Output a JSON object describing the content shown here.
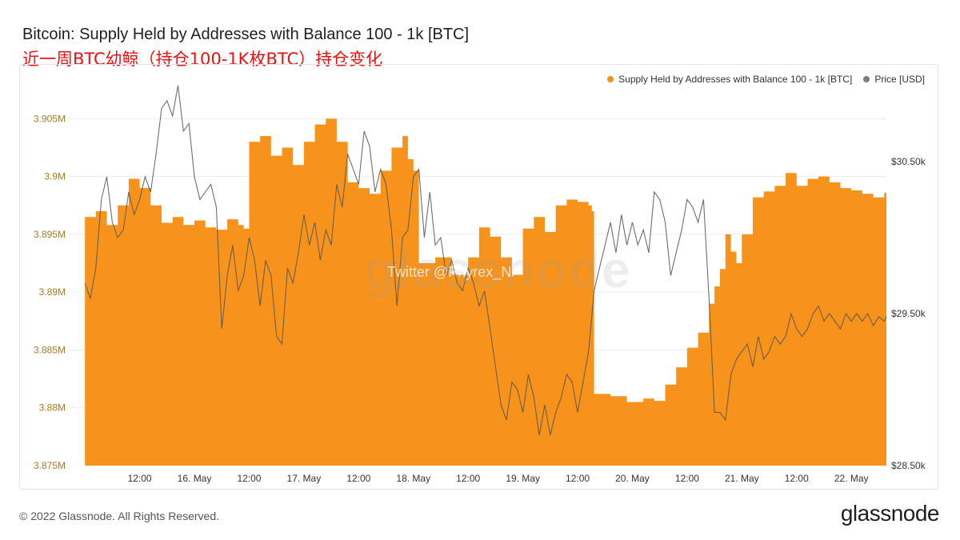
{
  "header": {
    "title": "Bitcoin: Supply Held by Addresses with Balance 100 - 1k [BTC]",
    "subtitle": "近一周BTC幼鲸（持仓100-1K枚BTC）持仓变化"
  },
  "legend": {
    "supply_label": "Supply Held by Addresses with Balance 100 - 1k [BTC]",
    "price_label": "Price [USD]"
  },
  "watermark": {
    "text": "Twitter @Phyrex_Ni",
    "brand": "glassnode"
  },
  "footer": {
    "copyright": "© 2022 Glassnode. All Rights Reserved.",
    "logo": "glassnode"
  },
  "chart_data": {
    "type": "area",
    "colors": {
      "supply": "#f7931a",
      "price": "#7d7d7d",
      "left_axis": "#b07a1c",
      "right_axis": "#333333"
    },
    "x_ticks": [
      {
        "t": 0.5,
        "label": "12:00"
      },
      {
        "t": 1.0,
        "label": "16. May"
      },
      {
        "t": 1.5,
        "label": "12:00"
      },
      {
        "t": 2.0,
        "label": "17. May"
      },
      {
        "t": 2.5,
        "label": "12:00"
      },
      {
        "t": 3.0,
        "label": "18. May"
      },
      {
        "t": 3.5,
        "label": "12:00"
      },
      {
        "t": 4.0,
        "label": "19. May"
      },
      {
        "t": 4.5,
        "label": "12:00"
      },
      {
        "t": 5.0,
        "label": "20. May"
      },
      {
        "t": 5.5,
        "label": "12:00"
      },
      {
        "t": 6.0,
        "label": "21. May"
      },
      {
        "t": 6.5,
        "label": "12:00"
      },
      {
        "t": 7.0,
        "label": "22. May"
      }
    ],
    "y_left": {
      "min": 3875000,
      "max": 3908000,
      "ticks": [
        {
          "v": 3875000,
          "label": "3.875M"
        },
        {
          "v": 3880000,
          "label": "3.88M"
        },
        {
          "v": 3885000,
          "label": "3.885M"
        },
        {
          "v": 3890000,
          "label": "3.89M"
        },
        {
          "v": 3895000,
          "label": "3.895M"
        },
        {
          "v": 3900000,
          "label": "3.9M"
        },
        {
          "v": 3905000,
          "label": "3.905M"
        }
      ]
    },
    "y_right": {
      "min": 28500,
      "max": 31010,
      "ticks": [
        {
          "v": 28500,
          "label": "$28.50k"
        },
        {
          "v": 29500,
          "label": "$29.50k"
        },
        {
          "v": 30500,
          "label": "$30.50k"
        }
      ]
    },
    "supply_series": {
      "name": "Supply Held by Addresses with Balance 100 - 1k [BTC]",
      "points": [
        [
          0.0,
          3896500
        ],
        [
          0.1,
          3897000
        ],
        [
          0.2,
          3895800
        ],
        [
          0.3,
          3897500
        ],
        [
          0.4,
          3899800
        ],
        [
          0.5,
          3899000
        ],
        [
          0.6,
          3897500
        ],
        [
          0.7,
          3896000
        ],
        [
          0.8,
          3896500
        ],
        [
          0.9,
          3895800
        ],
        [
          1.0,
          3896200
        ],
        [
          1.1,
          3895600
        ],
        [
          1.2,
          3895400
        ],
        [
          1.3,
          3896300
        ],
        [
          1.4,
          3895800
        ],
        [
          1.45,
          3895500
        ],
        [
          1.5,
          3903000
        ],
        [
          1.6,
          3903500
        ],
        [
          1.7,
          3901800
        ],
        [
          1.8,
          3902500
        ],
        [
          1.9,
          3901000
        ],
        [
          2.0,
          3903000
        ],
        [
          2.1,
          3904500
        ],
        [
          2.2,
          3905000
        ],
        [
          2.3,
          3903000
        ],
        [
          2.4,
          3899500
        ],
        [
          2.5,
          3899000
        ],
        [
          2.6,
          3898500
        ],
        [
          2.7,
          3900500
        ],
        [
          2.8,
          3902500
        ],
        [
          2.9,
          3903500
        ],
        [
          2.95,
          3901500
        ],
        [
          3.0,
          3900500
        ],
        [
          3.05,
          3892500
        ],
        [
          3.2,
          3893000
        ],
        [
          3.35,
          3891500
        ],
        [
          3.5,
          3893000
        ],
        [
          3.6,
          3895600
        ],
        [
          3.7,
          3894800
        ],
        [
          3.8,
          3893000
        ],
        [
          3.9,
          3891500
        ],
        [
          4.0,
          3895500
        ],
        [
          4.1,
          3896500
        ],
        [
          4.2,
          3895200
        ],
        [
          4.3,
          3897500
        ],
        [
          4.4,
          3898000
        ],
        [
          4.5,
          3897800
        ],
        [
          4.6,
          3897500
        ],
        [
          4.63,
          3897000
        ],
        [
          4.65,
          3881200
        ],
        [
          4.8,
          3881000
        ],
        [
          4.95,
          3880500
        ],
        [
          5.1,
          3880800
        ],
        [
          5.2,
          3880600
        ],
        [
          5.3,
          3882000
        ],
        [
          5.4,
          3883500
        ],
        [
          5.5,
          3885200
        ],
        [
          5.6,
          3886500
        ],
        [
          5.7,
          3889000
        ],
        [
          5.75,
          3890500
        ],
        [
          5.8,
          3892000
        ],
        [
          5.85,
          3895000
        ],
        [
          5.9,
          3893500
        ],
        [
          5.95,
          3892500
        ],
        [
          6.0,
          3895000
        ],
        [
          6.1,
          3898200
        ],
        [
          6.2,
          3898700
        ],
        [
          6.3,
          3899200
        ],
        [
          6.4,
          3900300
        ],
        [
          6.5,
          3899200
        ],
        [
          6.6,
          3899800
        ],
        [
          6.7,
          3900000
        ],
        [
          6.8,
          3899500
        ],
        [
          6.9,
          3899000
        ],
        [
          7.0,
          3898800
        ],
        [
          7.1,
          3898500
        ],
        [
          7.2,
          3898200
        ],
        [
          7.3,
          3898600
        ],
        [
          7.32,
          3898800
        ]
      ]
    },
    "price_series": {
      "name": "Price [USD]",
      "points": [
        [
          0.0,
          29700
        ],
        [
          0.05,
          29600
        ],
        [
          0.1,
          29800
        ],
        [
          0.15,
          30250
        ],
        [
          0.2,
          30400
        ],
        [
          0.25,
          30100
        ],
        [
          0.3,
          30000
        ],
        [
          0.35,
          30050
        ],
        [
          0.4,
          30300
        ],
        [
          0.45,
          30150
        ],
        [
          0.5,
          30250
        ],
        [
          0.55,
          30400
        ],
        [
          0.6,
          30300
        ],
        [
          0.65,
          30550
        ],
        [
          0.7,
          30850
        ],
        [
          0.75,
          30900
        ],
        [
          0.8,
          30800
        ],
        [
          0.85,
          31000
        ],
        [
          0.9,
          30700
        ],
        [
          0.95,
          30750
        ],
        [
          1.0,
          30400
        ],
        [
          1.05,
          30250
        ],
        [
          1.1,
          30300
        ],
        [
          1.15,
          30350
        ],
        [
          1.2,
          30200
        ],
        [
          1.25,
          29400
        ],
        [
          1.3,
          29750
        ],
        [
          1.35,
          29950
        ],
        [
          1.4,
          29650
        ],
        [
          1.45,
          29750
        ],
        [
          1.5,
          30000
        ],
        [
          1.55,
          29850
        ],
        [
          1.6,
          29550
        ],
        [
          1.65,
          29850
        ],
        [
          1.7,
          29750
        ],
        [
          1.75,
          29350
        ],
        [
          1.8,
          29300
        ],
        [
          1.85,
          29800
        ],
        [
          1.9,
          29700
        ],
        [
          1.95,
          29900
        ],
        [
          2.0,
          30150
        ],
        [
          2.05,
          29950
        ],
        [
          2.1,
          30100
        ],
        [
          2.15,
          29850
        ],
        [
          2.2,
          30050
        ],
        [
          2.25,
          29950
        ],
        [
          2.3,
          30350
        ],
        [
          2.35,
          30200
        ],
        [
          2.4,
          30550
        ],
        [
          2.45,
          30450
        ],
        [
          2.5,
          30350
        ],
        [
          2.55,
          30700
        ],
        [
          2.6,
          30600
        ],
        [
          2.65,
          30300
        ],
        [
          2.7,
          30450
        ],
        [
          2.75,
          30350
        ],
        [
          2.8,
          30050
        ],
        [
          2.85,
          29550
        ],
        [
          2.9,
          30000
        ],
        [
          2.95,
          30050
        ],
        [
          3.0,
          30400
        ],
        [
          3.05,
          30450
        ],
        [
          3.1,
          30000
        ],
        [
          3.15,
          30300
        ],
        [
          3.2,
          29950
        ],
        [
          3.25,
          30000
        ],
        [
          3.3,
          29750
        ],
        [
          3.35,
          29850
        ],
        [
          3.4,
          29700
        ],
        [
          3.45,
          29650
        ],
        [
          3.5,
          29800
        ],
        [
          3.55,
          29700
        ],
        [
          3.6,
          29550
        ],
        [
          3.65,
          29650
        ],
        [
          3.7,
          29400
        ],
        [
          3.75,
          29150
        ],
        [
          3.8,
          28900
        ],
        [
          3.85,
          28800
        ],
        [
          3.9,
          29050
        ],
        [
          3.95,
          29000
        ],
        [
          4.0,
          28850
        ],
        [
          4.05,
          29100
        ],
        [
          4.1,
          28950
        ],
        [
          4.15,
          28700
        ],
        [
          4.2,
          28900
        ],
        [
          4.25,
          28700
        ],
        [
          4.3,
          28850
        ],
        [
          4.35,
          28950
        ],
        [
          4.4,
          29100
        ],
        [
          4.45,
          29050
        ],
        [
          4.5,
          28850
        ],
        [
          4.55,
          29050
        ],
        [
          4.6,
          29250
        ],
        [
          4.65,
          29650
        ],
        [
          4.7,
          29800
        ],
        [
          4.75,
          29950
        ],
        [
          4.8,
          30100
        ],
        [
          4.85,
          29900
        ],
        [
          4.9,
          30150
        ],
        [
          4.95,
          29950
        ],
        [
          5.0,
          30100
        ],
        [
          5.05,
          29950
        ],
        [
          5.1,
          30050
        ],
        [
          5.15,
          29900
        ],
        [
          5.2,
          30300
        ],
        [
          5.25,
          30250
        ],
        [
          5.3,
          30100
        ],
        [
          5.35,
          29750
        ],
        [
          5.4,
          29900
        ],
        [
          5.45,
          30050
        ],
        [
          5.5,
          30250
        ],
        [
          5.55,
          30200
        ],
        [
          5.6,
          30100
        ],
        [
          5.65,
          30250
        ],
        [
          5.7,
          29600
        ],
        [
          5.75,
          28850
        ],
        [
          5.8,
          28850
        ],
        [
          5.85,
          28800
        ],
        [
          5.9,
          29100
        ],
        [
          5.95,
          29200
        ],
        [
          6.0,
          29250
        ],
        [
          6.05,
          29300
        ],
        [
          6.1,
          29150
        ],
        [
          6.15,
          29350
        ],
        [
          6.2,
          29200
        ],
        [
          6.25,
          29250
        ],
        [
          6.3,
          29350
        ],
        [
          6.35,
          29300
        ],
        [
          6.4,
          29350
        ],
        [
          6.45,
          29500
        ],
        [
          6.5,
          29400
        ],
        [
          6.55,
          29350
        ],
        [
          6.6,
          29400
        ],
        [
          6.65,
          29500
        ],
        [
          6.7,
          29550
        ],
        [
          6.75,
          29450
        ],
        [
          6.8,
          29500
        ],
        [
          6.85,
          29450
        ],
        [
          6.9,
          29400
        ],
        [
          6.95,
          29500
        ],
        [
          7.0,
          29450
        ],
        [
          7.05,
          29500
        ],
        [
          7.1,
          29450
        ],
        [
          7.15,
          29500
        ],
        [
          7.2,
          29420
        ],
        [
          7.25,
          29480
        ],
        [
          7.3,
          29450
        ],
        [
          7.32,
          29480
        ]
      ]
    },
    "x_range": [
      -0.14,
      7.32
    ],
    "grid": "horizontal",
    "legend_position": "top-right"
  }
}
